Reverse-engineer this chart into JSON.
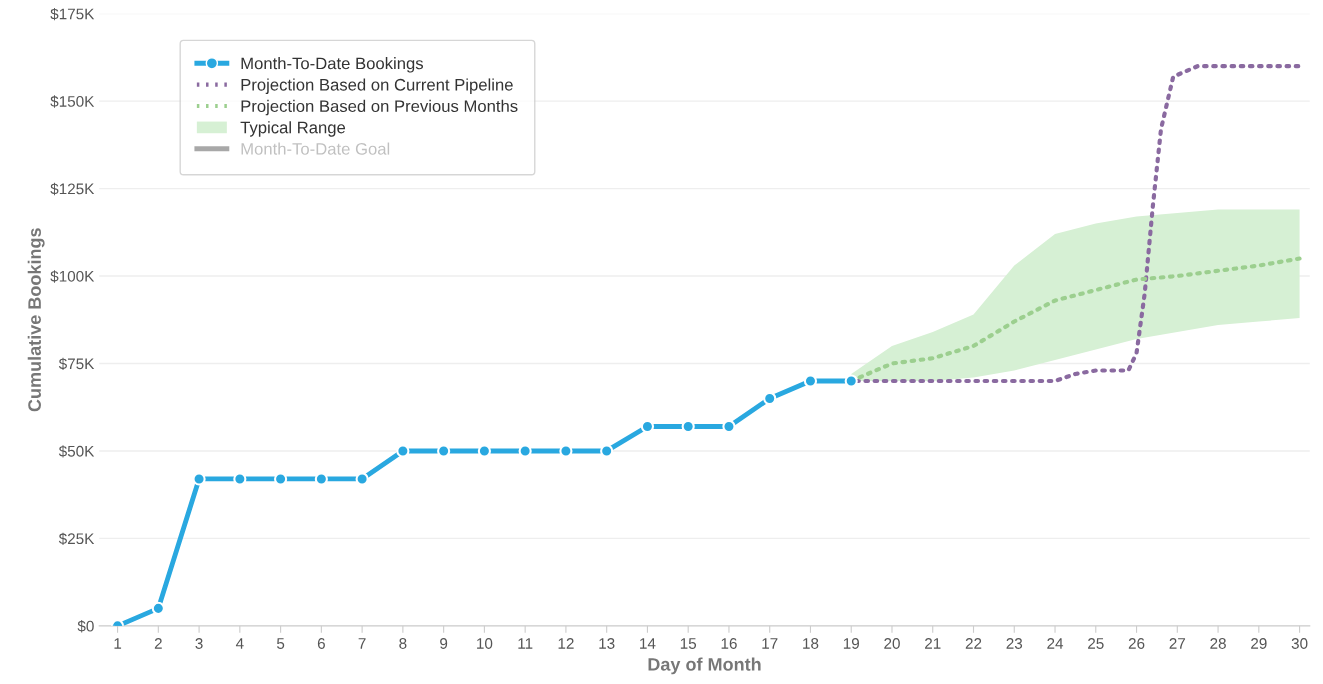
{
  "chart_data": {
    "type": "line",
    "xlabel": "Day of Month",
    "ylabel": "Cumulative Bookings",
    "xlim": [
      0.55,
      30.25
    ],
    "xticks": [
      1,
      2,
      3,
      4,
      5,
      6,
      7,
      8,
      9,
      10,
      11,
      12,
      13,
      14,
      15,
      16,
      17,
      18,
      19,
      20,
      21,
      22,
      23,
      24,
      25,
      26,
      27,
      28,
      29,
      30
    ],
    "ylim": [
      0,
      175000
    ],
    "yticks": [
      {
        "value": 0,
        "label": "$0"
      },
      {
        "value": 25000,
        "label": "$25K"
      },
      {
        "value": 50000,
        "label": "$50K"
      },
      {
        "value": 75000,
        "label": "$75K"
      },
      {
        "value": 100000,
        "label": "$100K"
      },
      {
        "value": 125000,
        "label": "$125K"
      },
      {
        "value": 150000,
        "label": "$150K"
      },
      {
        "value": 175000,
        "label": "$175K"
      }
    ],
    "grid": "y",
    "legend": "top left",
    "series": [
      {
        "name": "Month-To-Date Bookings",
        "color": "#29a8e0",
        "marker": "circle",
        "line_style": "solid",
        "x": [
          1,
          2,
          3,
          4,
          5,
          6,
          7,
          8,
          9,
          10,
          11,
          12,
          13,
          14,
          15,
          16,
          17,
          18,
          19
        ],
        "values": [
          0,
          5000,
          42000,
          42000,
          42000,
          42000,
          42000,
          50000,
          50000,
          50000,
          50000,
          50000,
          50000,
          57000,
          57000,
          57000,
          65000,
          70000,
          70000
        ]
      },
      {
        "name": "Projection Based on Current Pipeline",
        "color": "#8a6aa0",
        "marker": "none",
        "line_style": "dotted",
        "x": [
          18,
          19,
          20,
          21,
          22,
          23,
          24,
          24.5,
          25,
          25.5,
          25.8,
          26,
          26.2,
          26.4,
          26.6,
          26.9,
          27.5,
          28,
          29,
          30
        ],
        "values": [
          70000,
          70000,
          70000,
          70000,
          70000,
          70000,
          70000,
          72000,
          73000,
          73000,
          73000,
          78000,
          95000,
          120000,
          142000,
          157000,
          160000,
          160000,
          160000,
          160000
        ]
      },
      {
        "name": "Projection Based on Previous Months",
        "color": "#9ccf8f",
        "marker": "none",
        "line_style": "dotted",
        "x": [
          19,
          20,
          21,
          22,
          23,
          24,
          25,
          26,
          27,
          28,
          29,
          30
        ],
        "values": [
          70000,
          75000,
          76500,
          80000,
          87000,
          93000,
          96000,
          99000,
          100000,
          101500,
          103000,
          105000
        ]
      },
      {
        "name": "Typical Range",
        "type": "area",
        "color": "#d6f0d4",
        "x": [
          19,
          20,
          21,
          22,
          23,
          24,
          25,
          26,
          27,
          28,
          29,
          30
        ],
        "values": [
          null,
          null,
          null,
          null,
          null,
          null,
          null,
          null,
          null,
          null,
          null,
          null
        ],
        "lower": [
          70000,
          70000,
          70000,
          71000,
          73000,
          76000,
          79000,
          82000,
          84000,
          86000,
          87000,
          88000
        ],
        "upper": [
          72000,
          80000,
          84000,
          89000,
          103000,
          112000,
          115000,
          117000,
          118000,
          119000,
          119000,
          119000
        ]
      },
      {
        "name": "Month-To-Date Goal",
        "type": "line",
        "color": "#a8a8a8",
        "marker": "none",
        "line_style": "solid"
      }
    ]
  }
}
